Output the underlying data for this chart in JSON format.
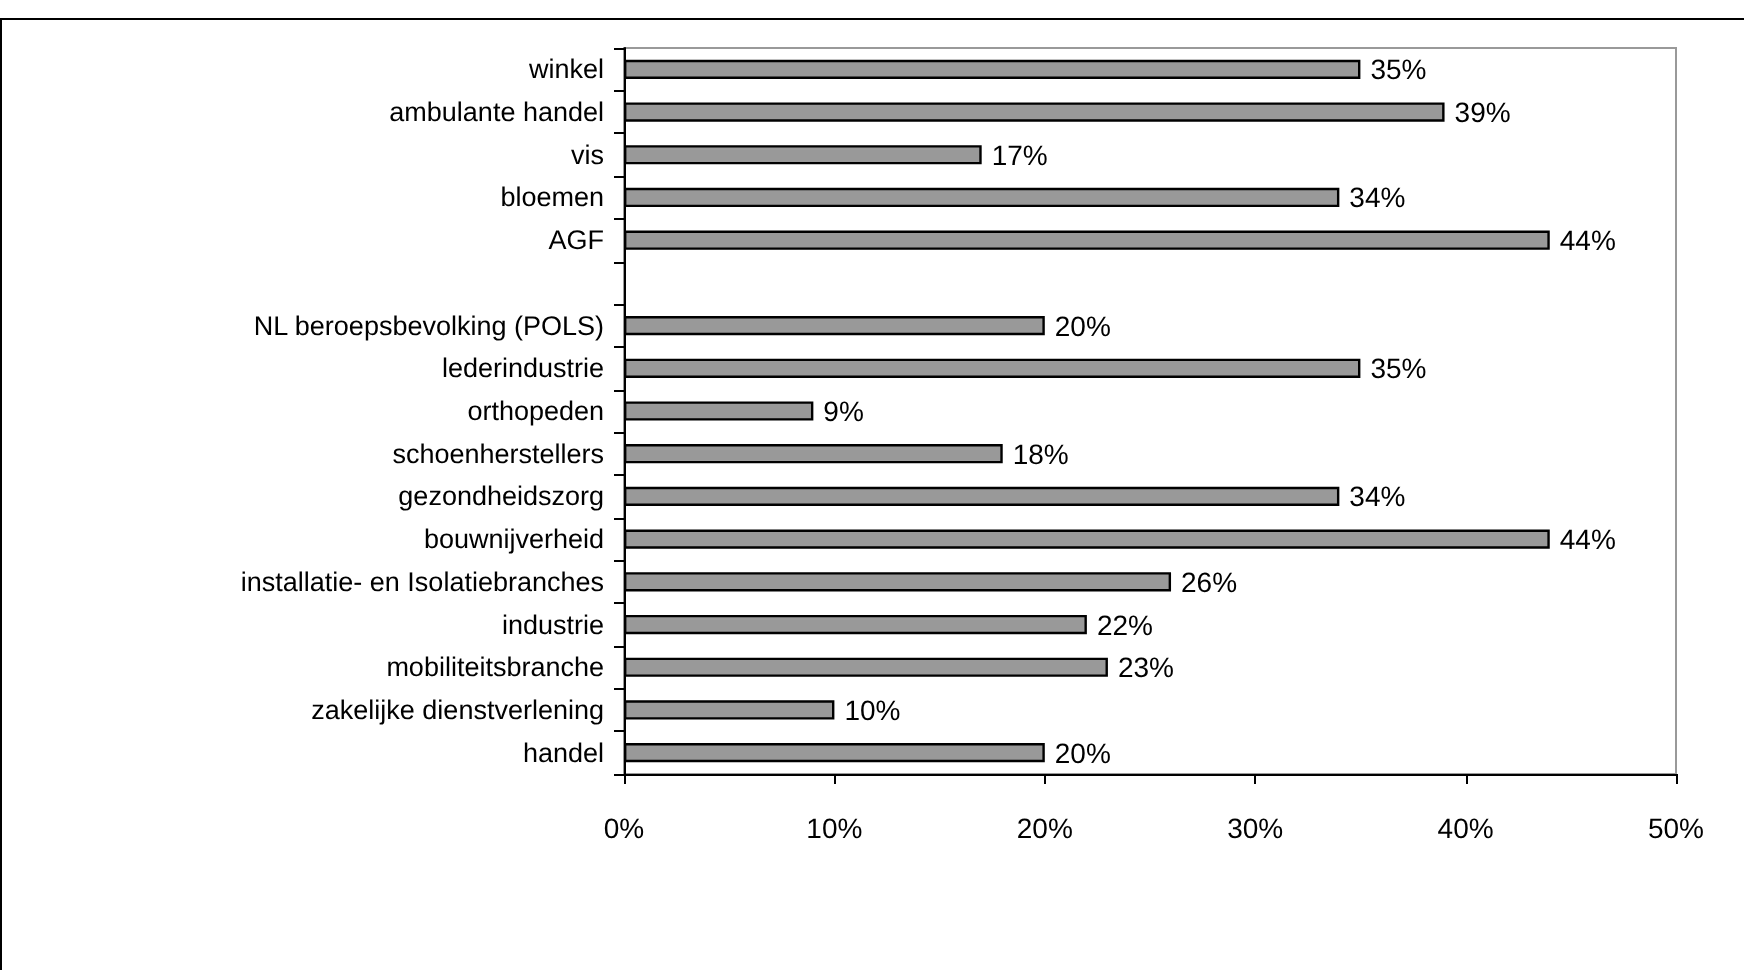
{
  "chart_data": {
    "type": "bar",
    "orientation": "horizontal",
    "categories": [
      "winkel",
      "ambulante handel",
      "vis",
      "bloemen",
      "AGF",
      null,
      "NL beroepsbevolking (POLS)",
      "lederindustrie",
      "orthopeden",
      "schoenherstellers",
      "gezondheidszorg",
      "bouwnijverheid",
      "installatie- en Isolatiebranches",
      "industrie",
      "mobiliteitsbranche",
      "zakelijke dienstverlening",
      "handel"
    ],
    "values": [
      35,
      39,
      17,
      34,
      44,
      null,
      20,
      35,
      9,
      18,
      34,
      44,
      26,
      22,
      23,
      10,
      20
    ],
    "value_labels": [
      "35%",
      "39%",
      "17%",
      "34%",
      "44%",
      null,
      "20%",
      "35%",
      "9%",
      "18%",
      "34%",
      "44%",
      "26%",
      "22%",
      "23%",
      "10%",
      "20%"
    ],
    "color": "#999999",
    "xlim": [
      0,
      50
    ],
    "xticks": [
      {
        "value": 0,
        "label": "0%"
      },
      {
        "value": 10,
        "label": "10%"
      },
      {
        "value": 20,
        "label": "20%"
      },
      {
        "value": 30,
        "label": "30%"
      },
      {
        "value": 40,
        "label": "40%"
      },
      {
        "value": 50,
        "label": "50%"
      }
    ],
    "grid": false
  }
}
